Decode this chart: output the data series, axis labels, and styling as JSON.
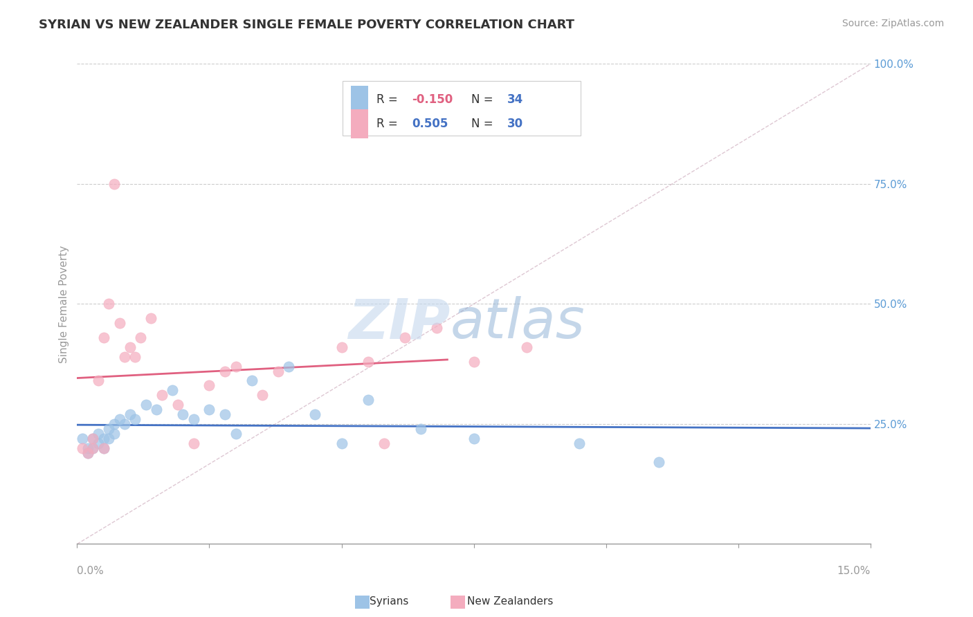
{
  "title": "SYRIAN VS NEW ZEALANDER SINGLE FEMALE POVERTY CORRELATION CHART",
  "source": "Source: ZipAtlas.com",
  "ylabel": "Single Female Poverty",
  "xmin": 0.0,
  "xmax": 0.15,
  "ymin": 0.0,
  "ymax": 1.0,
  "syrian_color": "#9DC3E6",
  "nz_color": "#F4ACBE",
  "syrian_line_color": "#4472C4",
  "nz_line_color": "#E06080",
  "syrian_R": -0.15,
  "syrian_N": 34,
  "nz_R": 0.505,
  "nz_N": 30,
  "legend_label_syrian": "R = -0.150   N = 34",
  "legend_label_nz": "R =  0.505   N = 30",
  "watermark_zip": "ZIP",
  "watermark_atlas": "atlas",
  "background_color": "#FFFFFF",
  "grid_color": "#CCCCCC",
  "axis_color": "#999999",
  "title_color": "#333333",
  "right_label_color": "#5B9BD5",
  "source_color": "#999999",
  "legend_label_color_R": "#333333",
  "legend_label_color_val_syrian": "#E06080",
  "legend_label_color_val_nz": "#4472C4",
  "legend_label_color_N": "#4472C4",
  "ytick_vals": [
    1.0,
    0.75,
    0.5,
    0.25
  ],
  "ytick_labels": [
    "100.0%",
    "75.0%",
    "50.0%",
    "25.0%"
  ],
  "syrians_x": [
    0.001,
    0.002,
    0.002,
    0.003,
    0.003,
    0.004,
    0.004,
    0.005,
    0.005,
    0.006,
    0.006,
    0.007,
    0.007,
    0.008,
    0.009,
    0.01,
    0.011,
    0.013,
    0.015,
    0.018,
    0.02,
    0.022,
    0.025,
    0.028,
    0.03,
    0.033,
    0.04,
    0.045,
    0.05,
    0.055,
    0.065,
    0.075,
    0.095,
    0.11
  ],
  "syrians_y": [
    0.22,
    0.2,
    0.19,
    0.22,
    0.2,
    0.21,
    0.23,
    0.22,
    0.2,
    0.24,
    0.22,
    0.25,
    0.23,
    0.26,
    0.25,
    0.27,
    0.26,
    0.29,
    0.28,
    0.32,
    0.27,
    0.26,
    0.28,
    0.27,
    0.23,
    0.34,
    0.37,
    0.27,
    0.21,
    0.3,
    0.24,
    0.22,
    0.21,
    0.17
  ],
  "nz_x": [
    0.001,
    0.002,
    0.003,
    0.003,
    0.004,
    0.005,
    0.005,
    0.006,
    0.007,
    0.008,
    0.009,
    0.01,
    0.011,
    0.012,
    0.014,
    0.016,
    0.019,
    0.022,
    0.025,
    0.028,
    0.03,
    0.035,
    0.038,
    0.05,
    0.055,
    0.058,
    0.062,
    0.068,
    0.075,
    0.085
  ],
  "nz_y": [
    0.2,
    0.19,
    0.22,
    0.2,
    0.34,
    0.43,
    0.2,
    0.5,
    0.75,
    0.46,
    0.39,
    0.41,
    0.39,
    0.43,
    0.47,
    0.31,
    0.29,
    0.21,
    0.33,
    0.36,
    0.37,
    0.31,
    0.36,
    0.41,
    0.38,
    0.21,
    0.43,
    0.45,
    0.38,
    0.41
  ]
}
